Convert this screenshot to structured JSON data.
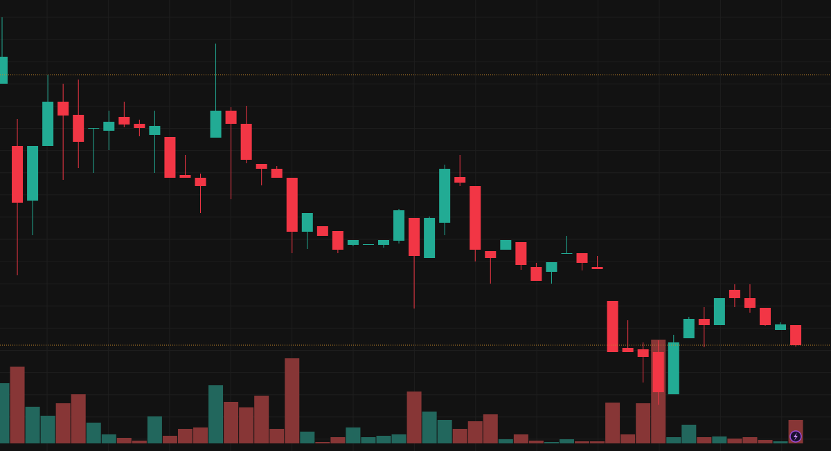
{
  "chart_data": {
    "type": "candlestick",
    "categories": [
      null,
      null,
      null,
      null,
      null,
      null,
      null,
      null,
      null,
      null,
      null,
      null,
      null,
      null,
      null,
      null,
      null,
      null,
      null,
      null,
      null,
      null,
      null,
      null,
      null,
      null,
      null,
      null,
      null,
      null,
      null,
      null,
      null,
      null,
      null,
      null,
      null,
      null,
      null,
      null,
      null,
      null,
      null,
      null,
      null,
      null,
      null,
      null,
      null,
      null,
      null,
      null,
      null
    ],
    "open": [
      531,
      441,
      362,
      441,
      505,
      486,
      466,
      463,
      483,
      473,
      457,
      454,
      399,
      395,
      453,
      492,
      473,
      415,
      408,
      395,
      317,
      325,
      318,
      298,
      298,
      298,
      304,
      337,
      279,
      330,
      396,
      383,
      289,
      291,
      302,
      266,
      259,
      285,
      286,
      266,
      217,
      149,
      147,
      143,
      82,
      163,
      191,
      182,
      233,
      221,
      207,
      175,
      182
    ],
    "high": [
      627,
      480,
      441,
      544,
      531,
      537,
      467,
      492,
      505,
      479,
      492,
      454,
      428,
      401,
      589,
      497,
      499,
      415,
      412,
      395,
      344,
      325,
      318,
      305,
      299,
      305,
      350,
      337,
      339,
      414,
      428,
      383,
      289,
      305,
      302,
      272,
      273,
      311,
      286,
      282,
      217,
      189,
      157,
      160,
      168,
      194,
      208,
      221,
      241,
      241,
      207,
      186,
      182
    ],
    "low": [
      531,
      254,
      312,
      441,
      392,
      409,
      402,
      435,
      468,
      455,
      402,
      395,
      395,
      344,
      453,
      364,
      416,
      384,
      395,
      286,
      292,
      311,
      286,
      296,
      298,
      294,
      300,
      206,
      279,
      312,
      383,
      274,
      242,
      291,
      262,
      246,
      242,
      285,
      261,
      263,
      143,
      143,
      99,
      67,
      82,
      163,
      150,
      182,
      208,
      200,
      181,
      175,
      151
    ],
    "close": [
      570,
      359,
      441,
      505,
      485,
      447,
      467,
      476,
      472,
      467,
      470,
      395,
      395,
      383,
      492,
      473,
      421,
      408,
      395,
      317,
      344,
      311,
      291,
      305,
      299,
      305,
      348,
      282,
      337,
      408,
      388,
      291,
      279,
      305,
      269,
      246,
      273,
      286,
      272,
      263,
      143,
      143,
      136,
      85,
      157,
      191,
      182,
      221,
      221,
      207,
      182,
      183,
      153
    ],
    "volume": [
      87,
      111,
      53,
      40,
      58,
      71,
      30,
      13,
      8,
      4,
      39,
      11,
      21,
      23,
      84,
      60,
      52,
      69,
      21,
      123,
      17,
      2,
      9,
      23,
      9,
      11,
      13,
      75,
      46,
      34,
      21,
      32,
      42,
      6,
      13,
      4,
      2,
      6,
      3,
      3,
      59,
      13,
      58,
      150,
      9,
      27,
      9,
      10,
      7,
      9,
      5,
      3,
      34
    ],
    "ylim": [
      0,
      652
    ],
    "volume_lim": [
      0,
      652
    ],
    "up_color": "#22ab94",
    "down_color": "#f23645",
    "volume_up_color": "#22675d",
    "volume_down_color": "#873636",
    "price_lines": [
      544,
      153
    ],
    "price_line_color": "#c98a2a",
    "grid": true
  }
}
